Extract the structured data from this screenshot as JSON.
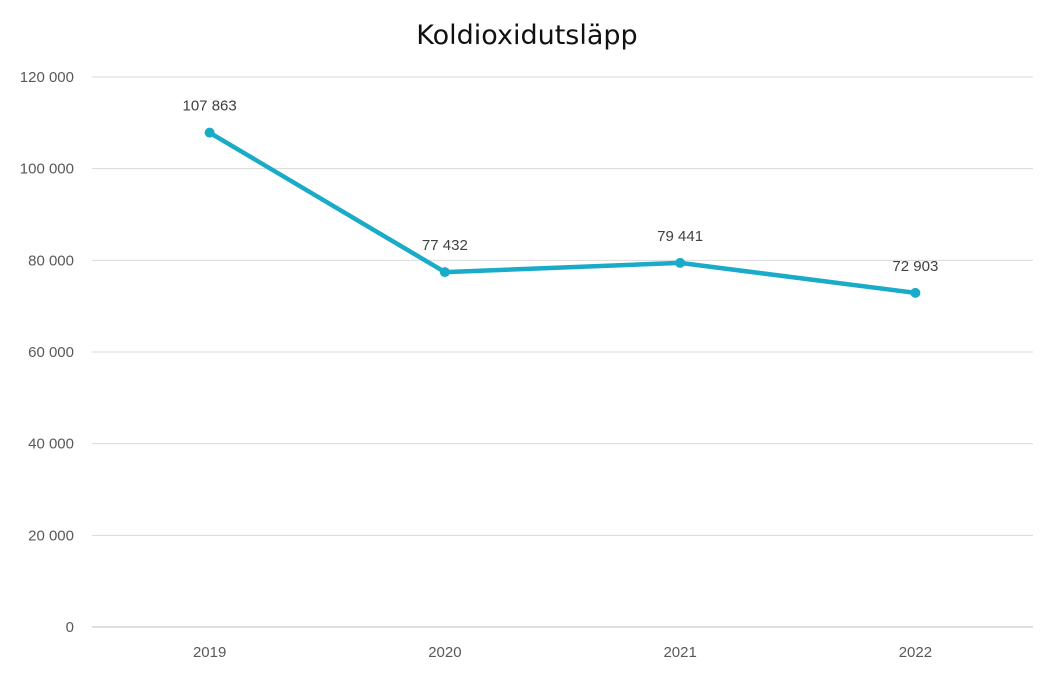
{
  "chart_data": {
    "type": "line",
    "title": "Koldioxidutsläpp",
    "xlabel": "",
    "ylabel": "",
    "categories": [
      "2019",
      "2020",
      "2021",
      "2022"
    ],
    "series": [
      {
        "values": [
          107863,
          77432,
          79441,
          72903
        ],
        "labels": [
          "107 863",
          "77 432",
          "79 441",
          "72 903"
        ]
      }
    ],
    "ylim": [
      0,
      120000
    ],
    "yticks": [
      0,
      20000,
      40000,
      60000,
      80000,
      100000,
      120000
    ],
    "ytick_labels": [
      "0",
      "20 000",
      "40 000",
      "60 000",
      "80 000",
      "100 000",
      "120 000"
    ],
    "grid": true,
    "legend": "none",
    "colors": {
      "line": "#1aabc8",
      "grid": "#d9d9d9"
    }
  }
}
